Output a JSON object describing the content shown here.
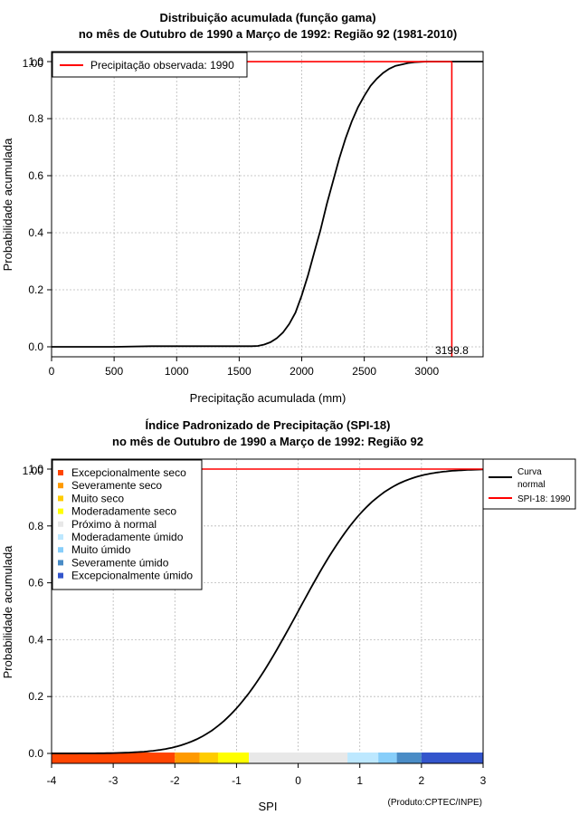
{
  "credit": "(Produto:CPTEC/INPE)",
  "chart_data": [
    {
      "type": "line",
      "title_line1": "Distribuição acumulada (função gama)",
      "title_line2": "no mês de Outubro de 1990 a Março de 1992: Região 92 (1981-2010)",
      "xlabel": "Precipitação acumulada (mm)",
      "ylabel": "Probabilidade acumulada",
      "xlim": [
        0,
        3450
      ],
      "ylim": [
        -0.035,
        1.035
      ],
      "x_ticks": [
        0,
        500,
        1000,
        1500,
        2000,
        2500,
        3000
      ],
      "x_tick_labels": [
        "0",
        "500",
        "1000",
        "1500",
        "2000",
        "2500",
        "3000"
      ],
      "y_ticks": [
        0.0,
        0.2,
        0.4,
        0.6,
        0.8,
        1.0
      ],
      "y_tick_labels": [
        "0.0",
        "0.2",
        "0.4",
        "0.6",
        "0.8",
        "1.0"
      ],
      "y_top_label_overlay": "1.00",
      "grid": true,
      "legend_position": "top-left",
      "series": [
        {
          "name": "Distribuição gama",
          "color": "#000000",
          "x": [
            0,
            500,
            800,
            1000,
            1200,
            1400,
            1600,
            1650,
            1700,
            1750,
            1800,
            1850,
            1900,
            1950,
            2000,
            2050,
            2100,
            2150,
            2200,
            2250,
            2300,
            2350,
            2400,
            2450,
            2500,
            2550,
            2600,
            2650,
            2700,
            2750,
            2800,
            2850,
            2900,
            2950,
            3000,
            3100,
            3200,
            3300,
            3450
          ],
          "y": [
            0.0,
            0.0,
            0.002,
            0.002,
            0.002,
            0.002,
            0.002,
            0.003,
            0.008,
            0.016,
            0.03,
            0.05,
            0.08,
            0.12,
            0.18,
            0.25,
            0.33,
            0.41,
            0.5,
            0.58,
            0.66,
            0.73,
            0.79,
            0.84,
            0.88,
            0.915,
            0.94,
            0.96,
            0.975,
            0.985,
            0.99,
            0.995,
            0.998,
            0.999,
            1.0,
            1.0,
            1.0,
            1.0,
            1.0
          ]
        }
      ],
      "observed": {
        "legend_label": "Precipitação observada: 1990",
        "color": "#ff0000",
        "value": 3199.8,
        "value_label": "3199.8",
        "probability": 1.0
      }
    },
    {
      "type": "line",
      "title_line1": "Índice Padronizado de Precipitação (SPI-18)",
      "title_line2": "no mês de Outubro de 1990 a Março de 1992: Região 92",
      "xlabel": "SPI",
      "ylabel": "Probabilidade acumulada",
      "xlim": [
        -4,
        3
      ],
      "ylim": [
        -0.035,
        1.035
      ],
      "x_ticks": [
        -4,
        -3,
        -2,
        -1,
        0,
        1,
        2,
        3
      ],
      "x_tick_labels": [
        "-4",
        "-3",
        "-2",
        "-1",
        "0",
        "1",
        "2",
        "3"
      ],
      "y_ticks": [
        0.0,
        0.2,
        0.4,
        0.6,
        0.8,
        1.0
      ],
      "y_tick_labels": [
        "0.0",
        "0.2",
        "0.4",
        "0.6",
        "0.8",
        "1.0"
      ],
      "y_top_label_overlay": "1.00",
      "grid": true,
      "normal_curve": {
        "name": "Curva normal",
        "legend_line1": "Curva",
        "legend_line2": "normal",
        "color": "#000000"
      },
      "spi_line": {
        "legend_label": "SPI-18: 1990",
        "color": "#ff0000",
        "probability": 1.0
      },
      "categories": [
        {
          "label": "Excepcionalmente seco",
          "color": "#ff4500",
          "from": -4.0,
          "to": -2.0
        },
        {
          "label": "Severamente seco",
          "color": "#ff9a00",
          "from": -2.0,
          "to": -1.6
        },
        {
          "label": "Muito seco",
          "color": "#ffcc00",
          "from": -1.6,
          "to": -1.3
        },
        {
          "label": "Moderadamente seco",
          "color": "#ffff00",
          "from": -1.3,
          "to": -0.8
        },
        {
          "label": "Próximo à normal",
          "color": "#e8e8e8",
          "from": -0.8,
          "to": 0.8
        },
        {
          "label": "Moderadamente úmido",
          "color": "#bde8ff",
          "from": 0.8,
          "to": 1.3
        },
        {
          "label": "Muito úmido",
          "color": "#87cefa",
          "from": 1.3,
          "to": 1.6
        },
        {
          "label": "Severamente úmido",
          "color": "#4a8cc6",
          "from": 1.6,
          "to": 2.0
        },
        {
          "label": "Excepcionalmente úmido",
          "color": "#3355cc",
          "from": 2.0,
          "to": 3.0
        }
      ]
    }
  ]
}
